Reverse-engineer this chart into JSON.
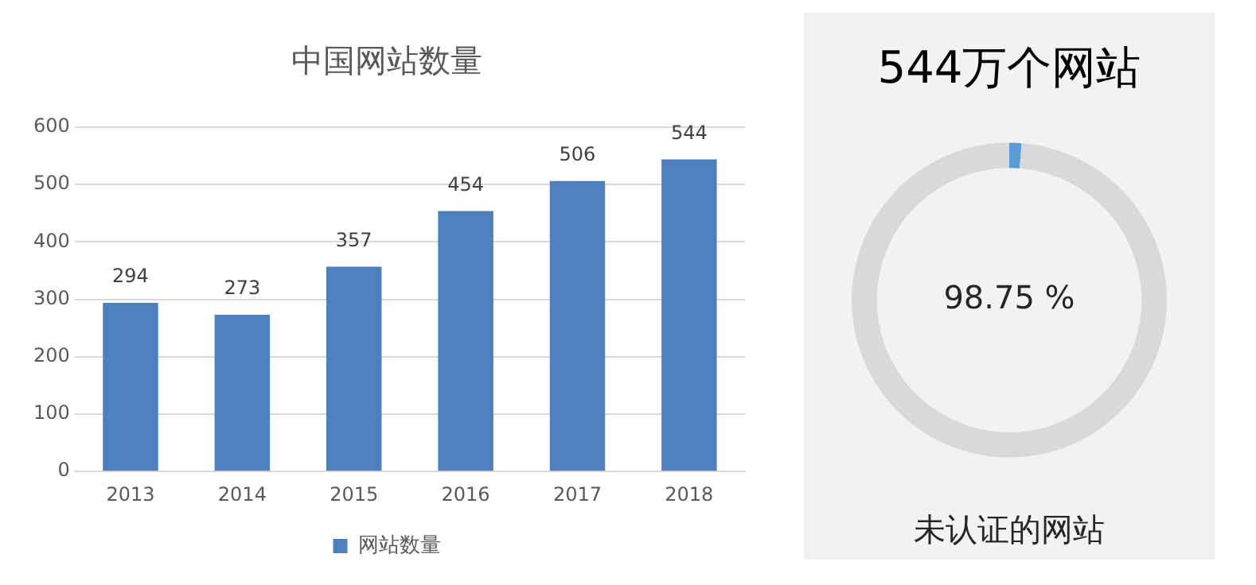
{
  "chart_data": [
    {
      "type": "bar",
      "title": "中国网站数量",
      "categories": [
        "2013",
        "2014",
        "2015",
        "2016",
        "2017",
        "2018"
      ],
      "series": [
        {
          "name": "网站数量",
          "color": "#4e7fbf",
          "values": [
            294,
            273,
            357,
            454,
            506,
            544
          ]
        }
      ],
      "ylim": [
        0,
        600
      ],
      "yticks": [
        0,
        100,
        200,
        300,
        400,
        500,
        600
      ],
      "grid": "y",
      "legend": "bottom",
      "data_labels": true
    },
    {
      "type": "donut",
      "title": "544万个网站",
      "categories": [
        null,
        "未认证的网站"
      ],
      "values": [
        1.25,
        98.75
      ],
      "colors": [
        "#5b9bd5",
        "#d9d9d9"
      ],
      "value_labels": [
        null,
        "98.75 %"
      ],
      "legend": false
    }
  ]
}
